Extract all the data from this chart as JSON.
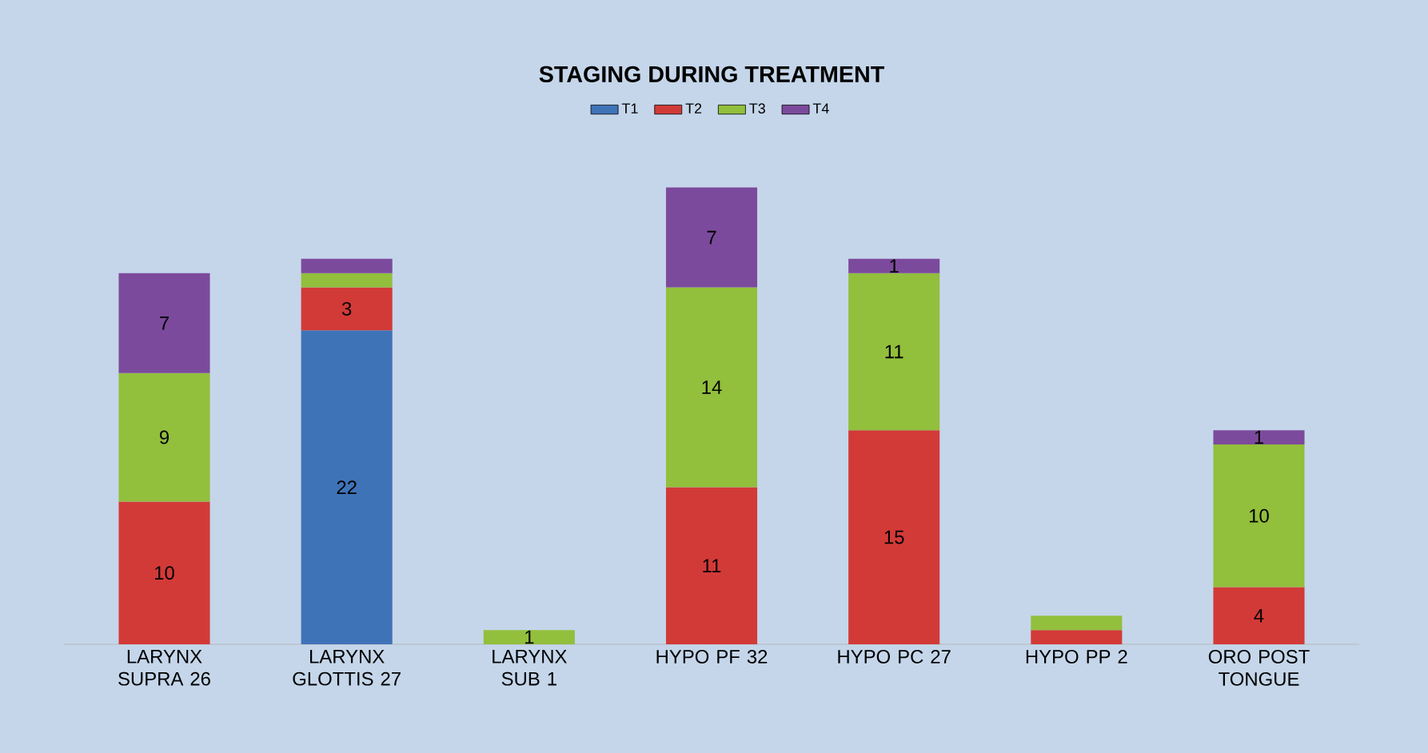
{
  "chart_data": {
    "type": "bar",
    "stacked": true,
    "title": "STAGING DURING TREATMENT",
    "legend": "top",
    "categories": [
      "LARYNX SUPRA 26",
      "LARYNX GLOTTIS 27",
      "LARYNX SUB 1",
      "HYPO PF 32",
      "HYPO PC 27",
      "HYPO PP 2",
      "ORO POST TONGUE"
    ],
    "series": [
      {
        "name": "T1",
        "color": "#3f73b8",
        "values": [
          null,
          22,
          null,
          null,
          null,
          null,
          null
        ],
        "value_labels": [
          null,
          "22",
          null,
          null,
          null,
          null,
          null
        ]
      },
      {
        "name": "T2",
        "color": "#d23a38",
        "values": [
          10,
          3,
          null,
          11,
          15,
          1,
          4
        ],
        "value_labels": [
          "10",
          "3",
          null,
          "11",
          "15",
          null,
          "4"
        ]
      },
      {
        "name": "T3",
        "color": "#92bf3c",
        "values": [
          9,
          1,
          1,
          14,
          11,
          1,
          10
        ],
        "value_labels": [
          "9",
          null,
          "1",
          "14",
          "11",
          null,
          "10"
        ]
      },
      {
        "name": "T4",
        "color": "#7c4a9c",
        "values": [
          7,
          1,
          null,
          7,
          1,
          null,
          1
        ],
        "value_labels": [
          "7",
          null,
          null,
          "7",
          "1",
          null,
          "1"
        ]
      }
    ]
  }
}
